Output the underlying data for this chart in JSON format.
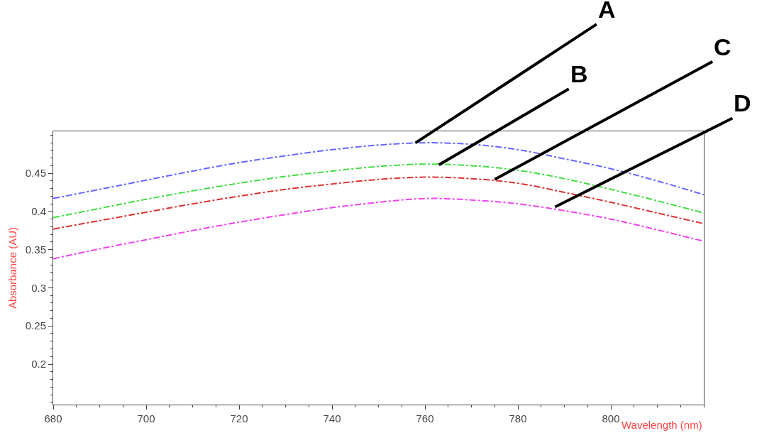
{
  "chart_data": {
    "type": "line",
    "xlabel": "Wavelength (nm)",
    "ylabel": "Absorbance (AU)",
    "x": [
      680,
      690,
      700,
      710,
      720,
      730,
      740,
      750,
      760,
      770,
      780,
      790,
      800,
      810,
      820
    ],
    "series": [
      {
        "color": "#6666ff",
        "values": [
          0.417,
          0.429,
          0.441,
          0.453,
          0.464,
          0.473,
          0.481,
          0.487,
          0.49,
          0.488,
          0.481,
          0.469,
          0.456,
          0.44,
          0.422
        ]
      },
      {
        "color": "#44dd44",
        "values": [
          0.392,
          0.404,
          0.416,
          0.427,
          0.437,
          0.446,
          0.453,
          0.459,
          0.462,
          0.46,
          0.454,
          0.443,
          0.429,
          0.414,
          0.398
        ]
      },
      {
        "color": "#dd3333",
        "values": [
          0.377,
          0.388,
          0.399,
          0.41,
          0.42,
          0.429,
          0.436,
          0.442,
          0.445,
          0.443,
          0.437,
          0.425,
          0.412,
          0.398,
          0.384
        ]
      },
      {
        "color": "#ee44ee",
        "values": [
          0.338,
          0.351,
          0.363,
          0.375,
          0.386,
          0.396,
          0.405,
          0.412,
          0.417,
          0.415,
          0.41,
          0.401,
          0.39,
          0.376,
          0.361
        ]
      }
    ],
    "annotations": [
      {
        "text": "A",
        "x": 758,
        "y": 0.49
      },
      {
        "text": "B",
        "x": 763,
        "y": 0.461
      },
      {
        "text": "C",
        "x": 775,
        "y": 0.442
      },
      {
        "text": "D",
        "x": 788,
        "y": 0.406
      }
    ],
    "xlim": [
      680,
      820
    ],
    "xticks": [
      680,
      700,
      720,
      740,
      760,
      780,
      800
    ],
    "ylim": [
      0.147,
      0.505
    ],
    "yticks": [
      0.2,
      0.25,
      0.3,
      0.35,
      0.4,
      0.45
    ],
    "line_style": "dashed",
    "marker": "none"
  }
}
